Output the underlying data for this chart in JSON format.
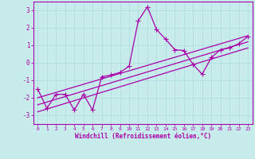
{
  "xlabel": "Windchill (Refroidissement éolien,°C)",
  "bg_color": "#c8ecec",
  "line_color": "#aa00aa",
  "grid_color": "#aadddd",
  "axis_color": "#aa00aa",
  "text_color": "#aa00aa",
  "xlim": [
    -0.5,
    23.5
  ],
  "ylim": [
    -3.5,
    3.5
  ],
  "yticks": [
    -3,
    -2,
    -1,
    0,
    1,
    2,
    3
  ],
  "xticks": [
    0,
    1,
    2,
    3,
    4,
    5,
    6,
    7,
    8,
    9,
    10,
    11,
    12,
    13,
    14,
    15,
    16,
    17,
    18,
    19,
    20,
    21,
    22,
    23
  ],
  "scatter_x": [
    0,
    1,
    2,
    3,
    4,
    5,
    6,
    7,
    8,
    9,
    10,
    11,
    12,
    13,
    14,
    15,
    16,
    17,
    18,
    19,
    20,
    21,
    22,
    23
  ],
  "scatter_y": [
    -1.5,
    -2.6,
    -1.8,
    -1.8,
    -2.7,
    -1.8,
    -2.7,
    -0.8,
    -0.7,
    -0.55,
    -0.2,
    2.4,
    3.2,
    1.9,
    1.35,
    0.75,
    0.7,
    -0.1,
    -0.65,
    0.3,
    0.75,
    0.85,
    1.1,
    1.5
  ],
  "line1_x": [
    0,
    23
  ],
  "line1_y": [
    -2.8,
    0.85
  ],
  "line2_x": [
    0,
    23
  ],
  "line2_y": [
    -2.4,
    1.2
  ],
  "line3_x": [
    0,
    23
  ],
  "line3_y": [
    -2.0,
    1.55
  ]
}
